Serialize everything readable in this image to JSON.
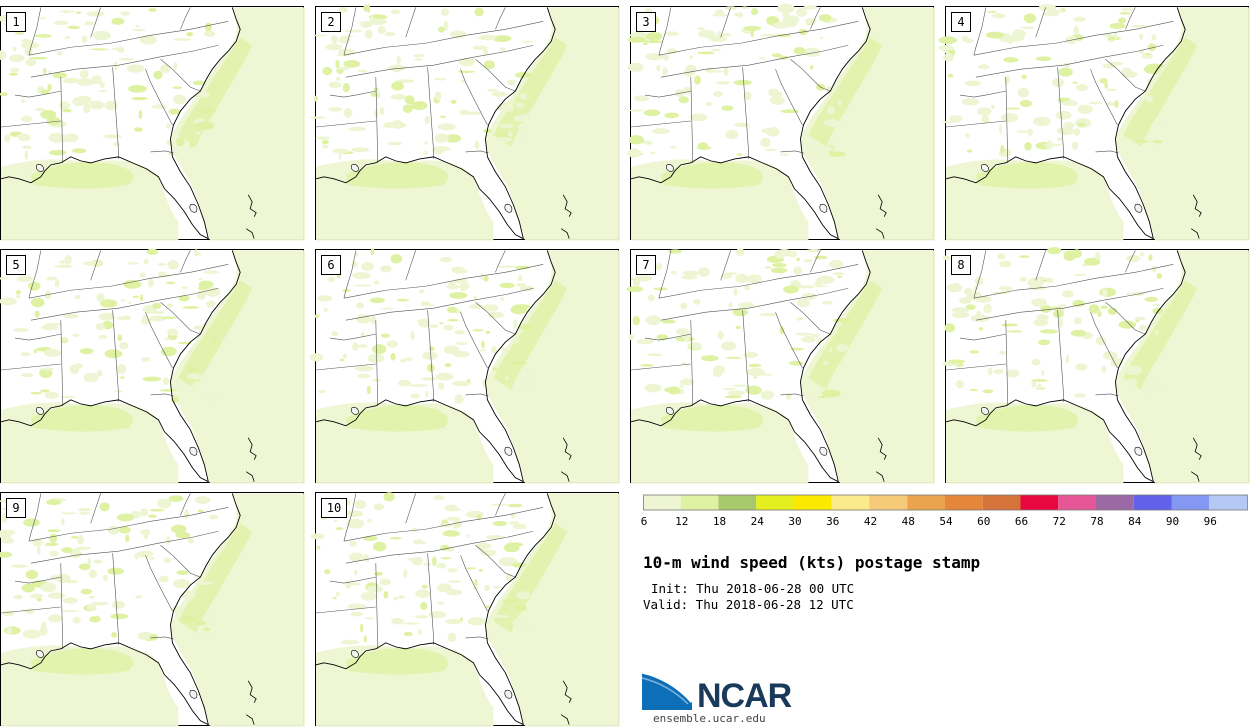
{
  "panels": [
    {
      "label": "1"
    },
    {
      "label": "2"
    },
    {
      "label": "3"
    },
    {
      "label": "4"
    },
    {
      "label": "5"
    },
    {
      "label": "6"
    },
    {
      "label": "7"
    },
    {
      "label": "8"
    },
    {
      "label": "9"
    },
    {
      "label": "10"
    }
  ],
  "colorbar": {
    "colors": [
      "#eef5d2",
      "#dff2a3",
      "#a7c96b",
      "#e5ef1f",
      "#f9ea00",
      "#fdea8a",
      "#f5cb7a",
      "#eba34e",
      "#e4873a",
      "#d5733a",
      "#e8073e",
      "#e55796",
      "#9b6aa5",
      "#6062ec",
      "#8497f2",
      "#b6c8f5"
    ],
    "tick_labels": [
      "6",
      "12",
      "18",
      "24",
      "30",
      "36",
      "42",
      "48",
      "54",
      "60",
      "66",
      "72",
      "78",
      "84",
      "90",
      "96"
    ]
  },
  "title": "10-m wind speed (kts) postage stamp",
  "init_line": "Init: Thu 2018-06-28 00 UTC",
  "valid_line": "Valid: Thu 2018-06-28 12 UTC",
  "logo": {
    "text": "NCAR",
    "url": "ensemble.ucar.edu"
  },
  "wind_colors": {
    "light": "#eef5d2",
    "medium": "#dff2a3"
  }
}
